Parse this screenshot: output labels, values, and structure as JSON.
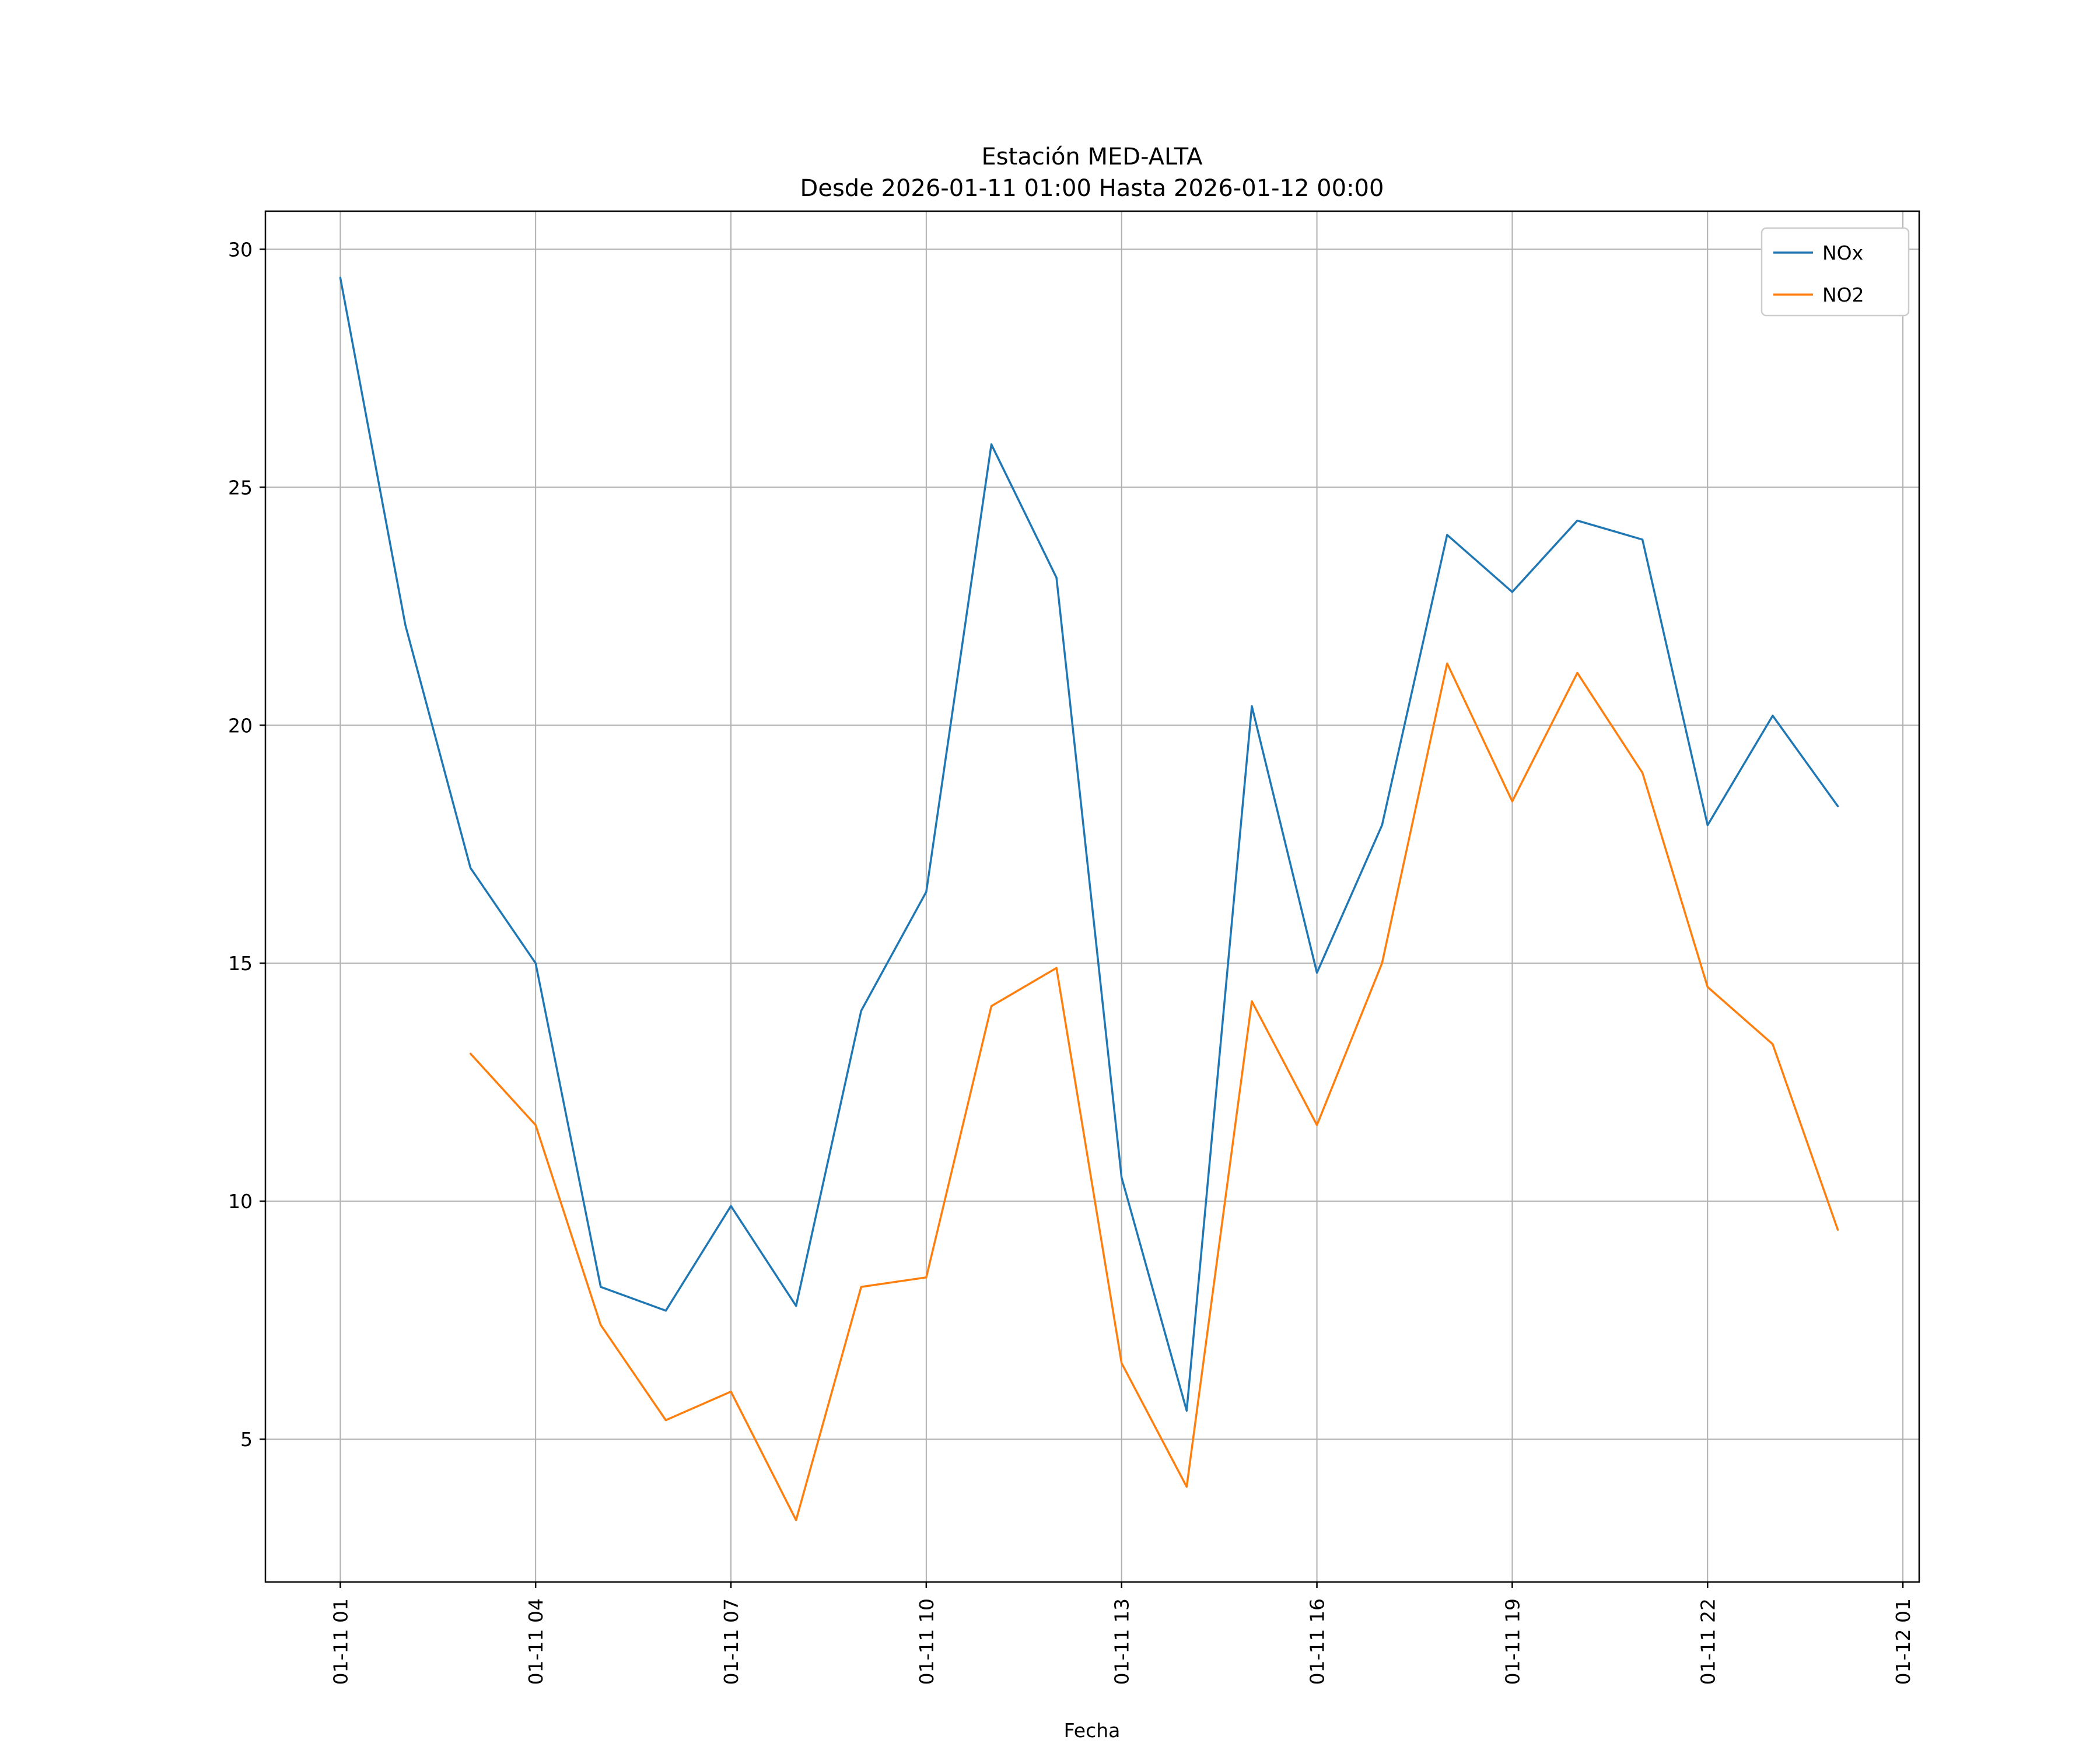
{
  "chart_data": {
    "type": "line",
    "title": "Estación MED-ALTA",
    "subtitle": "Desde 2026-01-11 01:00 Hasta 2026-01-12 00:00",
    "xlabel": "Fecha",
    "ylabel": "",
    "grid": true,
    "legend_position": "upper right",
    "xlim": [
      -0.15,
      25.25
    ],
    "ylim": [
      2.0,
      30.8
    ],
    "y_ticks": [
      5,
      10,
      15,
      20,
      25,
      30
    ],
    "x_ticks": [
      {
        "hour": 1,
        "label": "01-11 01"
      },
      {
        "hour": 4,
        "label": "01-11 04"
      },
      {
        "hour": 7,
        "label": "01-11 07"
      },
      {
        "hour": 10,
        "label": "01-11 10"
      },
      {
        "hour": 13,
        "label": "01-11 13"
      },
      {
        "hour": 16,
        "label": "01-11 16"
      },
      {
        "hour": 19,
        "label": "01-11 19"
      },
      {
        "hour": 22,
        "label": "01-11 22"
      },
      {
        "hour": 25,
        "label": "01-12 01"
      }
    ],
    "series": [
      {
        "name": "NOx",
        "color": "#1f77b4",
        "x": [
          1,
          2,
          3,
          4,
          5,
          6,
          7,
          8,
          9,
          10,
          11,
          12,
          13,
          14,
          15,
          16,
          17,
          18,
          19,
          20,
          21,
          22,
          23,
          24
        ],
        "values": [
          29.4,
          22.1,
          17.0,
          15.0,
          8.2,
          7.7,
          9.9,
          7.8,
          14.0,
          16.5,
          25.9,
          23.1,
          10.5,
          5.6,
          20.4,
          14.8,
          17.9,
          24.0,
          22.8,
          24.3,
          23.9,
          17.9,
          20.2,
          18.3
        ]
      },
      {
        "name": "NO2",
        "color": "#ff7f0e",
        "x": [
          3,
          4,
          5,
          6,
          7,
          8,
          9,
          10,
          11,
          12,
          13,
          14,
          15,
          16,
          17,
          18,
          19,
          20,
          21,
          22,
          23,
          24
        ],
        "values": [
          13.1,
          11.6,
          7.4,
          5.4,
          6.0,
          3.3,
          8.2,
          8.4,
          14.1,
          14.9,
          6.6,
          4.0,
          14.2,
          11.6,
          15.0,
          21.3,
          18.4,
          21.1,
          19.0,
          14.5,
          13.3,
          9.4
        ]
      }
    ]
  }
}
